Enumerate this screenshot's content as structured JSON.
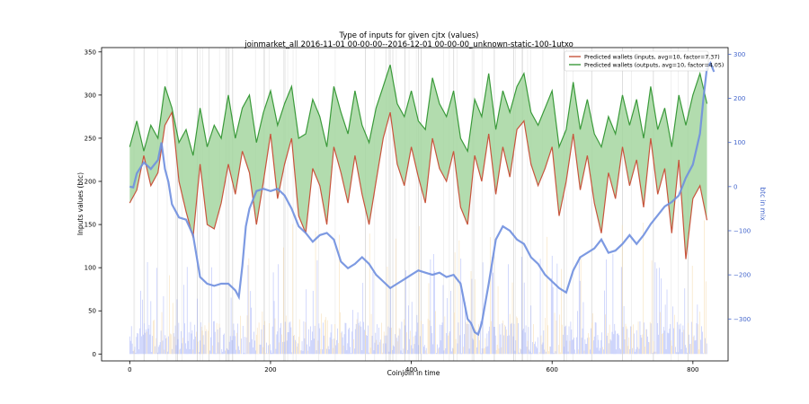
{
  "chart_data": {
    "type": "line",
    "title": "Type of inputs for given cjtx (values)",
    "subtitle": "joinmarket_all 2016-11-01 00-00-00--2016-12-01 00-00-00_unknown-static-100-1utxo",
    "xlabel": "Coinjoin in time",
    "ylabel": "Inputs values (btc)",
    "y2label": "btc in mix",
    "xlim": [
      -40,
      850
    ],
    "ylim": [
      -8,
      355
    ],
    "y2lim": [
      -395,
      315
    ],
    "xticks": [
      0,
      200,
      400,
      600,
      800
    ],
    "yticks": [
      0,
      50,
      100,
      150,
      200,
      250,
      300,
      350
    ],
    "y2ticks": [
      -300,
      -200,
      -100,
      0,
      100,
      200,
      300
    ],
    "legend_position": "top-right",
    "grid": "vertical lines at irregular coinjoin positions",
    "colors": {
      "inputs": "#c8553d",
      "outputs": "#3a9a3a",
      "fill": "#a5d6a0",
      "mix": "#6f8fdf",
      "bars": "#8a9af5",
      "bars_light": "#f5d9a8",
      "tick_right": "#4466cc"
    },
    "series": [
      {
        "name": "Predicted wallets (inputs, avg=10, factor=7.37)",
        "axis": "left",
        "x": [
          0,
          10,
          20,
          30,
          40,
          50,
          60,
          70,
          80,
          90,
          100,
          110,
          120,
          130,
          140,
          150,
          160,
          170,
          180,
          190,
          200,
          210,
          220,
          230,
          240,
          250,
          260,
          270,
          280,
          290,
          300,
          310,
          320,
          330,
          340,
          350,
          360,
          370,
          380,
          390,
          400,
          410,
          420,
          430,
          440,
          450,
          460,
          470,
          480,
          490,
          500,
          510,
          520,
          530,
          540,
          550,
          560,
          570,
          580,
          590,
          600,
          610,
          620,
          630,
          640,
          650,
          660,
          670,
          680,
          690,
          700,
          710,
          720,
          730,
          740,
          750,
          760,
          770,
          780,
          790,
          800,
          810,
          820
        ],
        "values": [
          175,
          190,
          230,
          195,
          210,
          265,
          280,
          200,
          165,
          135,
          220,
          150,
          145,
          175,
          220,
          185,
          235,
          210,
          150,
          200,
          255,
          180,
          220,
          250,
          160,
          140,
          215,
          195,
          150,
          240,
          210,
          175,
          230,
          185,
          150,
          200,
          250,
          280,
          220,
          195,
          240,
          205,
          175,
          250,
          215,
          200,
          235,
          170,
          150,
          230,
          200,
          255,
          185,
          240,
          205,
          260,
          270,
          220,
          195,
          215,
          240,
          160,
          200,
          255,
          190,
          230,
          175,
          140,
          210,
          180,
          240,
          195,
          225,
          170,
          250,
          185,
          215,
          140,
          225,
          110,
          180,
          195,
          155
        ]
      },
      {
        "name": "Predicted wallets (outputs, avg=10, factor=4.05)",
        "axis": "left",
        "x": [
          0,
          10,
          20,
          30,
          40,
          50,
          60,
          70,
          80,
          90,
          100,
          110,
          120,
          130,
          140,
          150,
          160,
          170,
          180,
          190,
          200,
          210,
          220,
          230,
          240,
          250,
          260,
          270,
          280,
          290,
          300,
          310,
          320,
          330,
          340,
          350,
          360,
          370,
          380,
          390,
          400,
          410,
          420,
          430,
          440,
          450,
          460,
          470,
          480,
          490,
          500,
          510,
          520,
          530,
          540,
          550,
          560,
          570,
          580,
          590,
          600,
          610,
          620,
          630,
          640,
          650,
          660,
          670,
          680,
          690,
          700,
          710,
          720,
          730,
          740,
          750,
          760,
          770,
          780,
          790,
          800,
          810,
          820
        ],
        "values": [
          240,
          270,
          235,
          265,
          250,
          310,
          285,
          245,
          260,
          230,
          285,
          240,
          265,
          250,
          300,
          250,
          285,
          300,
          245,
          280,
          305,
          265,
          290,
          310,
          250,
          255,
          295,
          275,
          240,
          310,
          280,
          255,
          305,
          265,
          245,
          285,
          310,
          335,
          290,
          275,
          305,
          270,
          260,
          320,
          290,
          275,
          305,
          250,
          235,
          295,
          275,
          325,
          260,
          305,
          280,
          310,
          325,
          280,
          265,
          285,
          305,
          240,
          260,
          315,
          260,
          295,
          255,
          240,
          275,
          255,
          300,
          265,
          295,
          250,
          310,
          260,
          285,
          240,
          300,
          265,
          300,
          325,
          290
        ]
      },
      {
        "name": "btc in mix",
        "axis": "right",
        "x": [
          0,
          5,
          10,
          20,
          30,
          40,
          45,
          50,
          55,
          60,
          70,
          80,
          90,
          100,
          110,
          120,
          130,
          140,
          150,
          155,
          160,
          165,
          170,
          180,
          190,
          200,
          210,
          220,
          230,
          240,
          250,
          260,
          270,
          280,
          290,
          300,
          310,
          320,
          330,
          340,
          350,
          360,
          370,
          380,
          390,
          400,
          410,
          420,
          430,
          440,
          450,
          460,
          470,
          480,
          485,
          490,
          495,
          500,
          510,
          520,
          530,
          540,
          550,
          560,
          570,
          580,
          590,
          600,
          610,
          620,
          630,
          640,
          650,
          660,
          670,
          680,
          690,
          700,
          710,
          720,
          730,
          740,
          750,
          760,
          770,
          780,
          790,
          800,
          810,
          815,
          820,
          825,
          830
        ],
        "values": [
          0,
          -2,
          30,
          55,
          40,
          60,
          100,
          40,
          10,
          -40,
          -70,
          -75,
          -110,
          -205,
          -220,
          -225,
          -220,
          -220,
          -235,
          -250,
          -180,
          -90,
          -50,
          -10,
          -5,
          -10,
          -5,
          -20,
          -50,
          -90,
          -105,
          -125,
          -110,
          -105,
          -120,
          -170,
          -185,
          -175,
          -160,
          -175,
          -200,
          -215,
          -230,
          -220,
          -210,
          -200,
          -190,
          -195,
          -200,
          -195,
          -205,
          -200,
          -220,
          -300,
          -310,
          -330,
          -335,
          -310,
          -220,
          -120,
          -90,
          -100,
          -120,
          -130,
          -160,
          -175,
          -200,
          -215,
          -230,
          -240,
          -190,
          -160,
          -150,
          -140,
          -120,
          -150,
          -145,
          -130,
          -110,
          -130,
          -110,
          -85,
          -65,
          -45,
          -35,
          -20,
          20,
          50,
          120,
          200,
          270,
          280,
          260
        ]
      }
    ],
    "bar_series": {
      "name": "per-coinjoin input values",
      "axis": "left",
      "note": "dense per-coinjoin vertical bars along the bottom, mostly below 60 btc, peaks near 120 btc",
      "approx_max": 120
    }
  }
}
